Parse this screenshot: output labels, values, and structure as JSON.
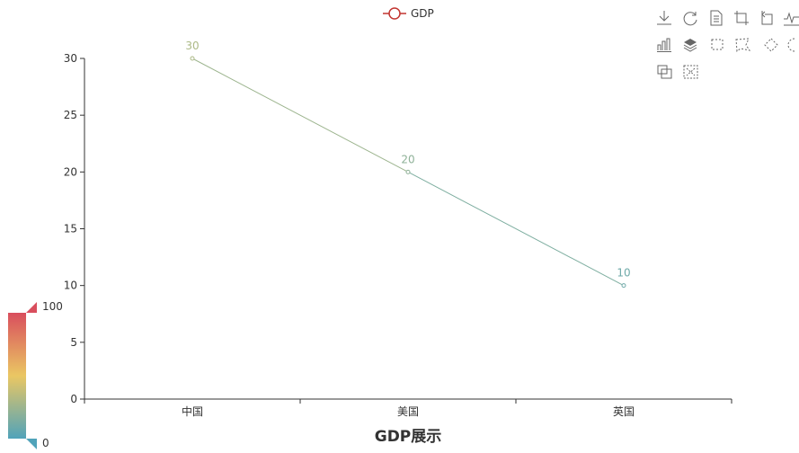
{
  "chart_data": {
    "type": "line",
    "title": "GDP展示",
    "categories": [
      "中国",
      "美国",
      "英国"
    ],
    "series": [
      {
        "name": "GDP",
        "values": [
          30,
          20,
          10
        ]
      }
    ],
    "ylim": [
      0,
      30
    ],
    "yticks": [
      0,
      5,
      10,
      15,
      20,
      25,
      30
    ],
    "legend": {
      "label": "GDP",
      "placement": "top-center",
      "color": "#c23531"
    },
    "visual_map": {
      "min_label": "0",
      "max_label": "100",
      "min": 0,
      "max": 100,
      "colors": [
        "#50a3ba",
        "#eac763",
        "#d94e5d"
      ],
      "placement": "bottom-left"
    },
    "grid": false
  },
  "toolbox": {
    "icons": [
      "download-icon",
      "refresh-icon",
      "data-view-icon",
      "zoom-icon",
      "zoom-reset-icon",
      "line-chart-icon",
      "bar-chart-icon",
      "stack-icon",
      "rect-select-icon",
      "polygon-select-icon",
      "keep-select-icon",
      "clear-select-icon",
      "brush-icon",
      "clear-brush-icon"
    ]
  }
}
